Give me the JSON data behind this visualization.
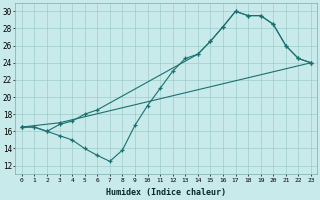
{
  "xlabel": "Humidex (Indice chaleur)",
  "xlim": [
    -0.5,
    23.5
  ],
  "ylim": [
    11,
    31
  ],
  "xticks": [
    0,
    1,
    2,
    3,
    4,
    5,
    6,
    7,
    8,
    9,
    10,
    11,
    12,
    13,
    14,
    15,
    16,
    17,
    18,
    19,
    20,
    21,
    22,
    23
  ],
  "yticks": [
    12,
    14,
    16,
    18,
    20,
    22,
    24,
    26,
    28,
    30
  ],
  "bg_color": "#c8eaea",
  "line_color": "#1a7070",
  "grid_color": "#a0cccc",
  "line1_x": [
    0,
    1,
    2,
    3,
    4,
    5,
    6,
    7,
    8,
    9,
    10,
    11,
    12,
    13,
    14,
    15,
    16,
    17,
    18,
    19,
    20,
    21,
    22,
    23
  ],
  "line1_y": [
    16.5,
    16.5,
    16.0,
    15.5,
    15.0,
    14.0,
    13.2,
    12.5,
    13.8,
    16.7,
    19.0,
    21.0,
    23.0,
    24.5,
    25.0,
    26.5,
    28.2,
    30.0,
    29.5,
    29.5,
    28.5,
    26.0,
    24.5,
    24.0
  ],
  "line2_x": [
    0,
    1,
    2,
    3,
    4,
    5,
    6,
    14,
    15,
    16,
    17,
    18,
    19,
    20,
    21,
    22,
    23
  ],
  "line2_y": [
    16.5,
    16.5,
    16.0,
    16.8,
    17.2,
    18.0,
    18.5,
    25.0,
    26.5,
    28.2,
    30.0,
    29.5,
    29.5,
    28.5,
    26.0,
    24.5,
    24.0
  ],
  "line3_x": [
    0,
    3,
    23
  ],
  "line3_y": [
    16.5,
    17.0,
    24.0
  ]
}
